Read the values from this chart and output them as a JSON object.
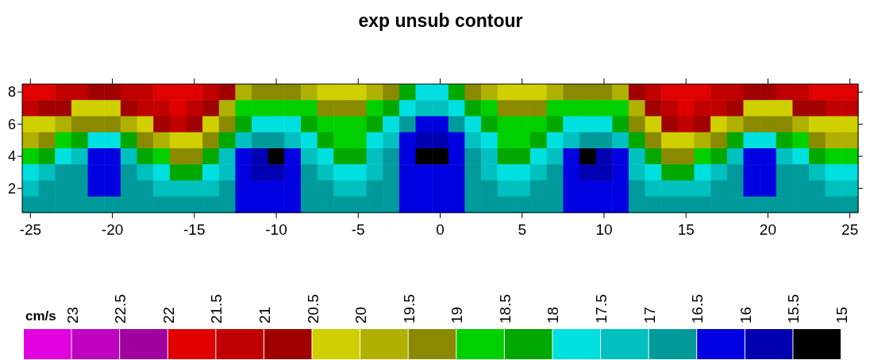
{
  "chart_data": {
    "type": "heatmap",
    "title": "exp unsub contour",
    "clabel": "cm/s",
    "categories": [
      "-25",
      null,
      null,
      null,
      null,
      "-20",
      null,
      null,
      null,
      null,
      "-15",
      null,
      null,
      null,
      null,
      "-10",
      null,
      null,
      null,
      null,
      "-5",
      null,
      null,
      null,
      null,
      "0",
      null,
      null,
      null,
      null,
      "5",
      null,
      null,
      null,
      null,
      "10",
      null,
      null,
      null,
      null,
      "15",
      null,
      null,
      null,
      null,
      "20",
      null,
      null,
      null,
      null,
      "25"
    ],
    "y_categories": [
      "8",
      null,
      "6",
      null,
      "4",
      null,
      "2",
      null
    ],
    "clim": [
      23.5,
      15
    ],
    "cticks": [
      23,
      22.5,
      22,
      21.5,
      21,
      20.5,
      20,
      19.5,
      19,
      18.5,
      18,
      17.5,
      17,
      16.5,
      16,
      15.5,
      15
    ],
    "colors": [
      "#000000",
      "#0000b0",
      "#0000e0",
      "#009a9a",
      "#00c0c0",
      "#00e0e0",
      "#00a800",
      "#00d000",
      "#8a8a00",
      "#b0b000",
      "#d0d000",
      "#a00000",
      "#c00000",
      "#e00000",
      "#a000a0",
      "#c000c0",
      "#e000e0"
    ],
    "cells": [
      [
        21.7,
        21.7,
        21.2,
        21.2,
        20.7,
        20.7,
        21.2,
        21.2,
        21.7,
        21.7,
        21.7,
        21.2,
        20.7,
        19.7,
        19.2,
        19.2,
        19.2,
        19.7,
        20.2,
        20.2,
        20.2,
        19.7,
        19.2,
        18.2,
        17.7,
        17.7,
        18.2,
        19.2,
        19.7,
        20.2,
        20.2,
        20.2,
        19.7,
        19.2,
        19.2,
        19.2,
        19.7,
        20.7,
        21.2,
        21.7,
        21.7,
        21.7,
        21.2,
        21.2,
        20.7,
        20.7,
        21.2,
        21.2,
        21.7,
        21.7,
        21.7
      ],
      [
        21.2,
        20.7,
        20.7,
        20.2,
        20.2,
        20.2,
        20.7,
        21.2,
        21.2,
        21.7,
        21.2,
        20.7,
        19.7,
        18.7,
        18.7,
        18.7,
        18.7,
        18.7,
        19.2,
        19.2,
        19.2,
        18.7,
        18.2,
        17.7,
        17.2,
        17.2,
        17.7,
        18.2,
        18.7,
        19.2,
        19.2,
        19.2,
        18.7,
        18.7,
        18.7,
        18.7,
        18.7,
        19.7,
        20.7,
        21.2,
        21.7,
        21.2,
        21.2,
        20.7,
        20.2,
        20.2,
        20.2,
        20.7,
        20.7,
        21.2,
        21.2
      ],
      [
        20.2,
        20.2,
        19.7,
        19.2,
        19.2,
        19.2,
        19.7,
        20.2,
        20.7,
        21.2,
        20.7,
        20.2,
        19.2,
        18.2,
        17.7,
        17.7,
        17.7,
        18.2,
        18.7,
        18.7,
        18.7,
        18.2,
        17.7,
        16.7,
        16.2,
        16.2,
        16.7,
        17.7,
        18.2,
        18.7,
        18.7,
        18.7,
        18.2,
        17.7,
        17.7,
        17.7,
        18.2,
        19.2,
        20.2,
        20.7,
        21.2,
        20.7,
        20.2,
        19.7,
        19.2,
        19.2,
        19.2,
        19.7,
        20.2,
        20.2,
        20.2
      ],
      [
        19.7,
        19.2,
        18.7,
        18.2,
        17.7,
        17.7,
        18.2,
        19.2,
        19.7,
        20.2,
        20.2,
        19.2,
        18.2,
        17.2,
        16.7,
        16.7,
        17.2,
        17.7,
        18.2,
        18.7,
        18.7,
        17.7,
        17.2,
        16.2,
        15.7,
        15.7,
        16.2,
        17.2,
        17.7,
        18.7,
        18.7,
        18.2,
        17.7,
        17.2,
        16.7,
        16.7,
        17.2,
        18.2,
        19.2,
        20.2,
        20.2,
        19.7,
        19.2,
        18.2,
        17.7,
        17.7,
        18.2,
        18.7,
        19.2,
        19.7,
        19.7
      ],
      [
        18.7,
        18.2,
        17.7,
        17.2,
        16.2,
        16.2,
        17.2,
        18.2,
        18.7,
        19.2,
        19.2,
        18.2,
        17.2,
        16.2,
        15.7,
        15.2,
        16.2,
        17.2,
        17.7,
        18.2,
        18.2,
        17.2,
        16.7,
        16.2,
        15.2,
        15.2,
        16.2,
        16.7,
        17.2,
        18.2,
        18.2,
        17.7,
        17.2,
        16.2,
        15.2,
        15.7,
        16.2,
        17.2,
        18.2,
        19.2,
        19.2,
        18.7,
        18.2,
        17.2,
        16.2,
        16.2,
        17.2,
        17.7,
        18.2,
        18.7,
        18.7
      ],
      [
        17.7,
        17.2,
        16.7,
        16.7,
        16.2,
        16.2,
        16.7,
        17.2,
        17.7,
        18.2,
        18.2,
        17.7,
        17.2,
        16.2,
        15.7,
        15.7,
        16.2,
        16.7,
        17.2,
        17.7,
        17.7,
        17.2,
        16.7,
        16.2,
        16.2,
        16.2,
        16.2,
        16.7,
        17.2,
        17.7,
        17.7,
        17.2,
        16.7,
        16.2,
        15.7,
        15.7,
        16.2,
        17.2,
        17.7,
        18.2,
        18.2,
        17.7,
        17.2,
        16.7,
        16.2,
        16.2,
        16.7,
        16.7,
        17.2,
        17.7,
        17.7
      ],
      [
        17.2,
        16.7,
        16.7,
        16.7,
        16.2,
        16.2,
        16.7,
        16.7,
        17.2,
        17.2,
        17.2,
        17.2,
        16.7,
        16.2,
        16.2,
        16.2,
        16.2,
        16.7,
        16.7,
        17.2,
        17.2,
        16.7,
        16.7,
        16.2,
        16.2,
        16.2,
        16.2,
        16.7,
        16.7,
        17.2,
        17.2,
        16.7,
        16.7,
        16.2,
        16.2,
        16.2,
        16.2,
        16.7,
        17.2,
        17.2,
        17.2,
        17.2,
        16.7,
        16.7,
        16.2,
        16.2,
        16.7,
        16.7,
        16.7,
        17.2,
        17.2
      ],
      [
        16.7,
        16.7,
        16.7,
        16.7,
        16.7,
        16.7,
        16.7,
        16.7,
        16.7,
        16.7,
        16.7,
        16.7,
        16.7,
        16.2,
        16.2,
        16.2,
        16.2,
        16.7,
        16.7,
        16.7,
        16.7,
        16.7,
        16.7,
        16.2,
        16.2,
        16.2,
        16.2,
        16.7,
        16.7,
        16.7,
        16.7,
        16.7,
        16.7,
        16.2,
        16.2,
        16.2,
        16.2,
        16.7,
        16.7,
        16.7,
        16.7,
        16.7,
        16.7,
        16.7,
        16.7,
        16.7,
        16.7,
        16.7,
        16.7,
        16.7,
        16.7
      ]
    ]
  }
}
